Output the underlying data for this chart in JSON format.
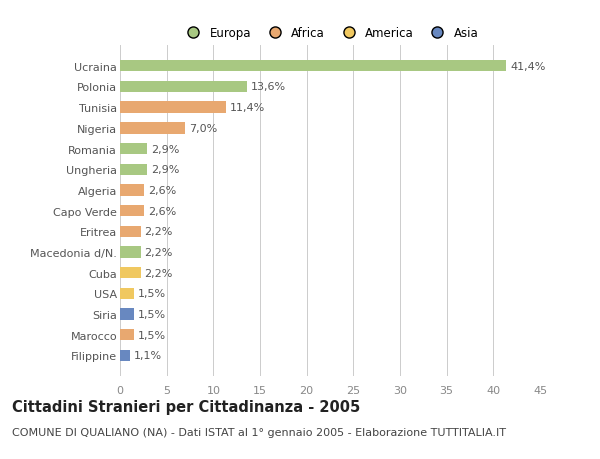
{
  "countries": [
    "Ucraina",
    "Polonia",
    "Tunisia",
    "Nigeria",
    "Romania",
    "Ungheria",
    "Algeria",
    "Capo Verde",
    "Eritrea",
    "Macedonia d/N.",
    "Cuba",
    "USA",
    "Siria",
    "Marocco",
    "Filippine"
  ],
  "values": [
    41.4,
    13.6,
    11.4,
    7.0,
    2.9,
    2.9,
    2.6,
    2.6,
    2.2,
    2.2,
    2.2,
    1.5,
    1.5,
    1.5,
    1.1
  ],
  "labels": [
    "41,4%",
    "13,6%",
    "11,4%",
    "7,0%",
    "2,9%",
    "2,9%",
    "2,6%",
    "2,6%",
    "2,2%",
    "2,2%",
    "2,2%",
    "1,5%",
    "1,5%",
    "1,5%",
    "1,1%"
  ],
  "continents": [
    "Europa",
    "Europa",
    "Africa",
    "Africa",
    "Europa",
    "Europa",
    "Africa",
    "Africa",
    "Africa",
    "Europa",
    "America",
    "America",
    "Asia",
    "Africa",
    "Asia"
  ],
  "continent_colors": {
    "Europa": "#a8c882",
    "Africa": "#e8a870",
    "America": "#f0c860",
    "Asia": "#6888c0"
  },
  "legend_order": [
    "Europa",
    "Africa",
    "America",
    "Asia"
  ],
  "xlim": [
    0,
    45
  ],
  "xticks": [
    0,
    5,
    10,
    15,
    20,
    25,
    30,
    35,
    40,
    45
  ],
  "title": "Cittadini Stranieri per Cittadinanza - 2005",
  "subtitle": "COMUNE DI QUALIANO (NA) - Dati ISTAT al 1° gennaio 2005 - Elaborazione TUTTITALIA.IT",
  "background_color": "#ffffff",
  "bar_height": 0.55,
  "label_fontsize": 8,
  "ytick_fontsize": 8,
  "xtick_fontsize": 8,
  "title_fontsize": 10.5,
  "subtitle_fontsize": 8
}
